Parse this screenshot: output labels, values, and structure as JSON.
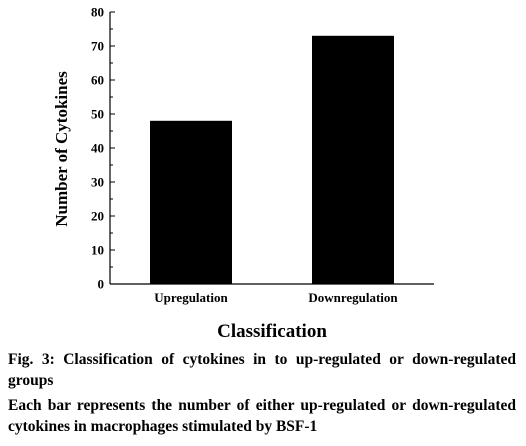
{
  "chart_data": {
    "type": "bar",
    "categories": [
      "Upregulation",
      "Downregulation"
    ],
    "values": [
      48,
      73
    ],
    "title": "",
    "xlabel": "Classification",
    "ylabel": "Number of Cytokines",
    "ylim": [
      0,
      80
    ],
    "yticks": [
      0,
      10,
      20,
      30,
      40,
      50,
      60,
      70,
      80
    ],
    "grid": false,
    "bar_color": "#000000"
  },
  "caption": {
    "title": "Fig. 3: Classification of cytokines in to up-regulated or down-regulated groups",
    "text": "Each bar represents the number of either up-regulated or down-regulated cytokines in macrophages stimulated by BSF-1"
  }
}
